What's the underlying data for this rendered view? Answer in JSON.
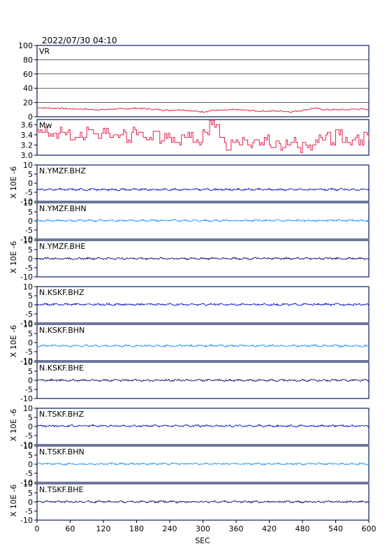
{
  "header": {
    "timestamp": "2022/07/30 04:10"
  },
  "chart_data": {
    "type": "line",
    "xlabel": "SEC",
    "xlim": [
      0,
      600
    ],
    "xticks": [
      "0",
      "60",
      "120",
      "180",
      "240",
      "300",
      "360",
      "420",
      "480",
      "540",
      "600"
    ],
    "colors": {
      "vr": "#e8204a",
      "mw": "#e8204a",
      "z": "#1010c8",
      "n": "#1e90ff",
      "e": "#10106a",
      "frame": "#0b1d5c"
    },
    "vr_panel": {
      "label": "VR",
      "ylim": [
        0,
        100
      ],
      "yticks": [
        "100",
        "80",
        "60",
        "40",
        "20",
        "0"
      ],
      "grid": true,
      "x": [
        0,
        20,
        40,
        60,
        80,
        100,
        120,
        140,
        160,
        180,
        200,
        220,
        240,
        260,
        280,
        300,
        320,
        340,
        360,
        380,
        400,
        420,
        440,
        460,
        480,
        500,
        520,
        540,
        560,
        580,
        600
      ],
      "values": [
        13,
        12,
        12,
        11,
        11,
        10,
        10,
        11,
        11,
        12,
        11,
        10,
        9,
        10,
        8,
        7,
        9,
        9,
        10,
        9,
        8,
        8,
        8,
        7,
        9,
        12,
        10,
        10,
        10,
        11,
        10
      ]
    },
    "mw_panel": {
      "label": "Mw",
      "ylim": [
        3.0,
        3.7
      ],
      "yticks": [
        "3.6",
        "3.4",
        "3.2",
        "3.0"
      ],
      "x": [
        0,
        10,
        20,
        30,
        40,
        50,
        60,
        70,
        80,
        90,
        100,
        110,
        120,
        130,
        140,
        150,
        160,
        170,
        180,
        190,
        200,
        210,
        220,
        230,
        240,
        250,
        260,
        270,
        280,
        290,
        300,
        310,
        320,
        330,
        340,
        350,
        360,
        370,
        380,
        390,
        400,
        410,
        420,
        430,
        440,
        450,
        460,
        470,
        480,
        490,
        500,
        510,
        520,
        530,
        540,
        550,
        560,
        570,
        580,
        590,
        600
      ],
      "values": [
        3.45,
        3.5,
        3.42,
        3.38,
        3.5,
        3.45,
        3.35,
        3.4,
        3.3,
        3.5,
        3.42,
        3.38,
        3.48,
        3.35,
        3.4,
        3.45,
        3.3,
        3.5,
        3.4,
        3.35,
        3.3,
        3.42,
        3.28,
        3.38,
        3.3,
        3.2,
        3.35,
        3.4,
        3.3,
        3.25,
        3.45,
        3.65,
        3.55,
        3.3,
        3.15,
        3.3,
        3.25,
        3.35,
        3.2,
        3.3,
        3.25,
        3.35,
        3.2,
        3.28,
        3.15,
        3.25,
        3.3,
        3.1,
        3.2,
        3.15,
        3.25,
        3.35,
        3.4,
        3.25,
        3.45,
        3.3,
        3.2,
        3.35,
        3.25,
        3.4,
        3.3
      ]
    },
    "waveform_unit": "X 10E -6",
    "waveform_ylim": [
      -10,
      10
    ],
    "waveform_yticks": [
      "10",
      "5",
      "0",
      "-5",
      "-10"
    ],
    "waveforms": [
      {
        "name": "N.YMZF.BHZ",
        "component": "z",
        "offset": -3.5
      },
      {
        "name": "N.YMZF.BHN",
        "component": "n",
        "offset": 0.2
      },
      {
        "name": "N.YMZF.BHE",
        "component": "e",
        "offset": 0.1
      },
      {
        "name": "N.KSKF.BHZ",
        "component": "z",
        "offset": 0.2
      },
      {
        "name": "N.KSKF.BHN",
        "component": "n",
        "offset": -1.8
      },
      {
        "name": "N.KSKF.BHE",
        "component": "e",
        "offset": 0.0
      },
      {
        "name": "N.TSKF.BHZ",
        "component": "z",
        "offset": 0.3
      },
      {
        "name": "N.TSKF.BHN",
        "component": "n",
        "offset": 0.2
      },
      {
        "name": "N.TSKF.BHE",
        "component": "e",
        "offset": 0.1
      }
    ]
  }
}
